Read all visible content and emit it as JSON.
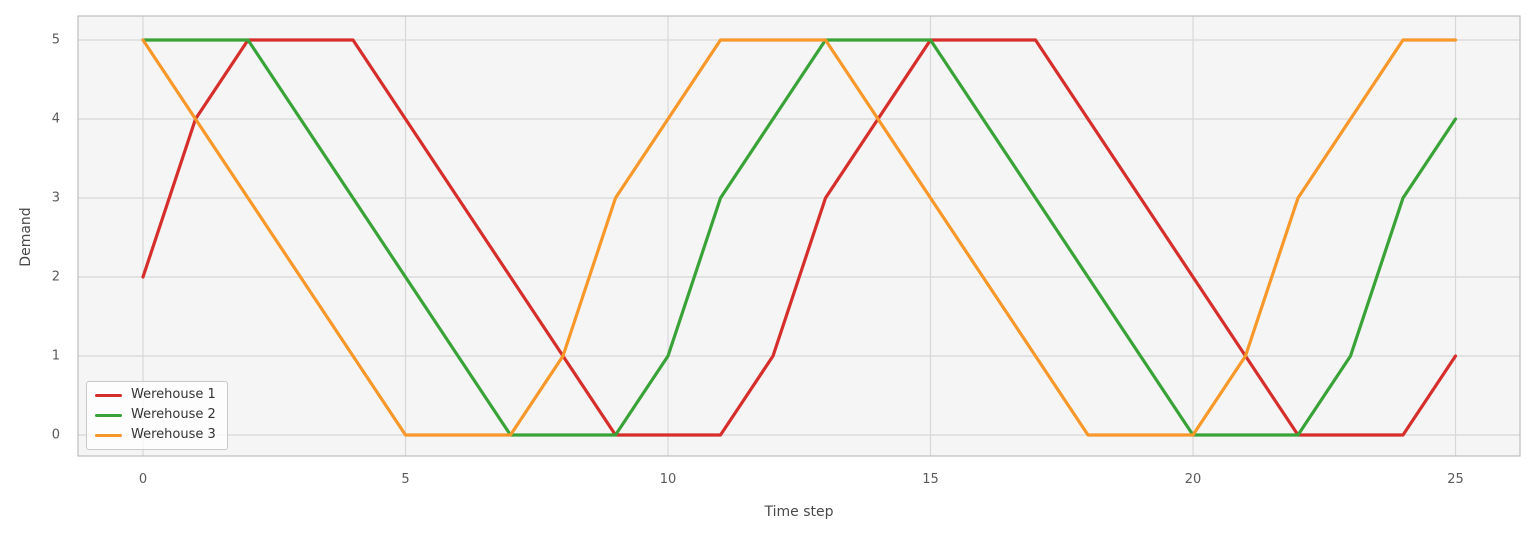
{
  "chart_data": {
    "type": "line",
    "title": "",
    "xlabel": "Time step",
    "ylabel": "Demand",
    "x": [
      0,
      1,
      2,
      3,
      4,
      5,
      6,
      7,
      8,
      9,
      10,
      11,
      12,
      13,
      14,
      15,
      16,
      17,
      18,
      19,
      20,
      21,
      22,
      23,
      24,
      25
    ],
    "series": [
      {
        "name": "Werehouse 1",
        "color": "#d62e2b",
        "values": [
          2,
          4,
          5,
          5,
          5,
          4,
          3,
          2,
          1,
          0,
          0,
          0,
          1,
          3,
          4,
          5,
          5,
          5,
          4,
          3,
          2,
          1,
          0,
          0,
          0,
          1
        ]
      },
      {
        "name": "Werehouse 2",
        "color": "#39a338",
        "values": [
          5,
          5,
          5,
          4,
          3,
          2,
          1,
          0,
          0,
          0,
          1,
          3,
          4,
          5,
          5,
          5,
          4,
          3,
          2,
          1,
          0,
          0,
          0,
          1,
          3,
          4
        ]
      },
      {
        "name": "Werehouse 3",
        "color": "#f8982a",
        "values": [
          5,
          4,
          3,
          2,
          1,
          0,
          0,
          0,
          1,
          3,
          4,
          5,
          5,
          5,
          4,
          3,
          2,
          1,
          0,
          0,
          0,
          1,
          3,
          4,
          5,
          5
        ]
      }
    ],
    "xticks": [
      0,
      5,
      10,
      15,
      20,
      25
    ],
    "yticks": [
      0,
      1,
      2,
      3,
      4,
      5
    ],
    "xlim": [
      -1.24,
      26.24
    ],
    "ylim": [
      -0.27,
      5.3
    ],
    "grid": true,
    "legend_position": "lower left",
    "colors": {
      "plot_background": "#f5f5f5",
      "figure_background": "#ffffff",
      "gridline": "#d8d8d8",
      "spine": "#bdbdbd",
      "tick_text": "#5a5a5a",
      "axis_label_text": "#4a4a4a",
      "legend_text": "#333333"
    }
  }
}
